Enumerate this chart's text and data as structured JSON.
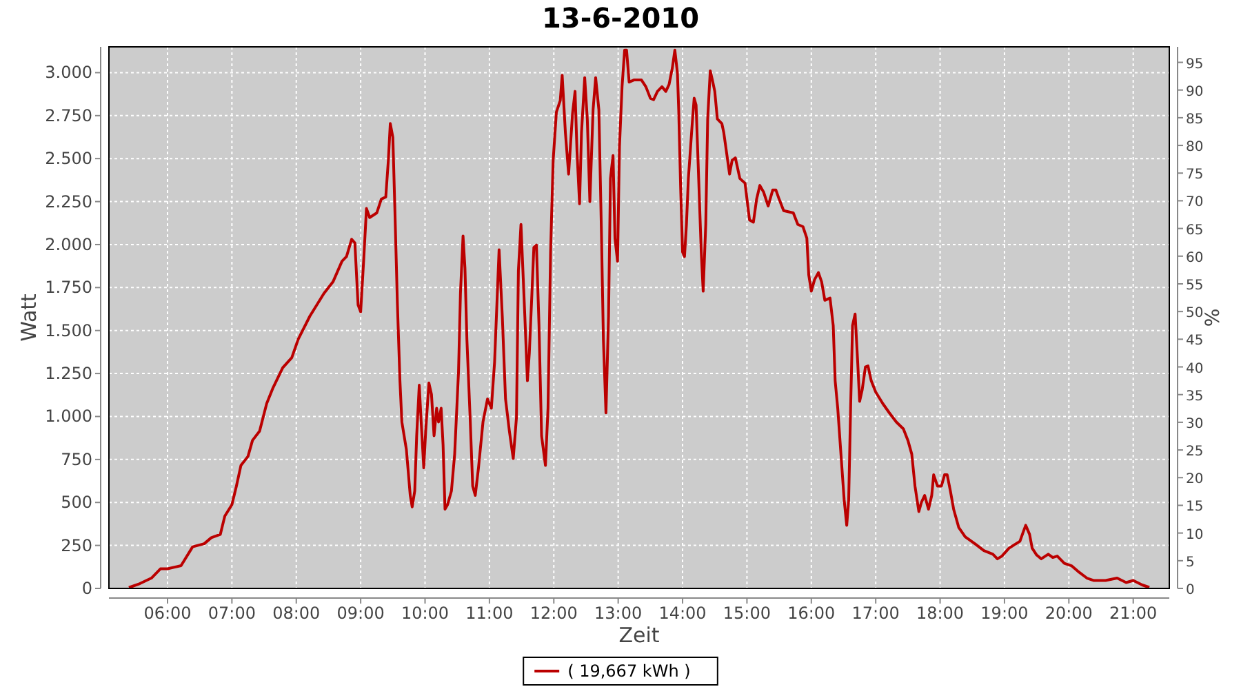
{
  "chart_data": {
    "type": "line",
    "title": "13-6-2010",
    "xlabel": "Zeit",
    "ylabel": "Watt",
    "y2label": "%",
    "xlim": [
      5.09,
      21.56
    ],
    "xticks": [
      {
        "value": 6,
        "label": "06:00"
      },
      {
        "value": 7,
        "label": "07:00"
      },
      {
        "value": 8,
        "label": "08:00"
      },
      {
        "value": 9,
        "label": "09:00"
      },
      {
        "value": 10,
        "label": "10:00"
      },
      {
        "value": 11,
        "label": "11:00"
      },
      {
        "value": 12,
        "label": "12:00"
      },
      {
        "value": 13,
        "label": "13:00"
      },
      {
        "value": 14,
        "label": "14:00"
      },
      {
        "value": 15,
        "label": "15:00"
      },
      {
        "value": 16,
        "label": "16:00"
      },
      {
        "value": 17,
        "label": "17:00"
      },
      {
        "value": 18,
        "label": "18:00"
      },
      {
        "value": 19,
        "label": "19:00"
      },
      {
        "value": 20,
        "label": "20:00"
      },
      {
        "value": 21,
        "label": "21:00"
      }
    ],
    "ylim": [
      0,
      3150
    ],
    "yticks": [
      0,
      250,
      500,
      750,
      {
        "value": 1000,
        "label": "1.000"
      },
      {
        "value": 1250,
        "label": "1.250"
      },
      {
        "value": 1500,
        "label": "1.500"
      },
      {
        "value": 1750,
        "label": "1.750"
      },
      {
        "value": 2000,
        "label": "2.000"
      },
      {
        "value": 2250,
        "label": "2.250"
      },
      {
        "value": 2500,
        "label": "2.500"
      },
      {
        "value": 2750,
        "label": "2.750"
      },
      {
        "value": 3000,
        "label": "3.000"
      }
    ],
    "y2lim": [
      0,
      97.8
    ],
    "y2ticks": [
      0,
      5,
      10,
      15,
      20,
      25,
      30,
      35,
      40,
      45,
      50,
      55,
      60,
      65,
      70,
      75,
      80,
      85,
      90,
      95
    ],
    "grid": true,
    "legend": "bottom",
    "marker": "none",
    "line_style": "solid",
    "series": [
      {
        "name": "( 19,667 kWh )",
        "color": "#bb0000",
        "x": [
          5.4,
          5.57,
          5.75,
          5.89,
          6.0,
          6.21,
          6.39,
          6.57,
          6.68,
          6.82,
          6.89,
          7.0,
          7.07,
          7.14,
          7.25,
          7.32,
          7.43,
          7.54,
          7.64,
          7.79,
          7.93,
          8.03,
          8.21,
          8.43,
          8.57,
          8.71,
          8.78,
          8.86,
          8.91,
          8.96,
          9.0,
          9.05,
          9.09,
          9.14,
          9.25,
          9.32,
          9.39,
          9.43,
          9.46,
          9.5,
          9.53,
          9.57,
          9.61,
          9.64,
          9.71,
          9.77,
          9.8,
          9.84,
          9.87,
          9.91,
          9.94,
          9.98,
          10.01,
          10.06,
          10.1,
          10.14,
          10.18,
          10.21,
          10.25,
          10.28,
          10.31,
          10.35,
          10.41,
          10.46,
          10.52,
          10.55,
          10.59,
          10.62,
          10.65,
          10.7,
          10.74,
          10.78,
          10.83,
          10.9,
          10.97,
          11.03,
          11.08,
          11.15,
          11.2,
          11.25,
          11.31,
          11.37,
          11.42,
          11.45,
          11.49,
          11.52,
          11.55,
          11.59,
          11.62,
          11.66,
          11.69,
          11.73,
          11.77,
          11.81,
          11.87,
          11.91,
          11.95,
          11.99,
          12.04,
          12.1,
          12.13,
          12.18,
          12.23,
          12.29,
          12.33,
          12.36,
          12.4,
          12.43,
          12.48,
          12.52,
          12.56,
          12.61,
          12.65,
          12.7,
          12.74,
          12.77,
          12.81,
          12.85,
          12.88,
          12.92,
          12.95,
          12.99,
          13.02,
          13.06,
          13.1,
          13.13,
          13.17,
          13.25,
          13.36,
          13.43,
          13.5,
          13.55,
          13.61,
          13.68,
          13.74,
          13.79,
          13.84,
          13.88,
          13.92,
          13.94,
          13.97,
          14.0,
          14.03,
          14.06,
          14.09,
          14.15,
          14.18,
          14.21,
          14.25,
          14.29,
          14.32,
          14.36,
          14.39,
          14.43,
          14.47,
          14.5,
          14.54,
          14.61,
          14.64,
          14.68,
          14.73,
          14.77,
          14.82,
          14.89,
          14.97,
          15.04,
          15.1,
          15.15,
          15.2,
          15.26,
          15.33,
          15.4,
          15.45,
          15.5,
          15.57,
          15.72,
          15.79,
          15.87,
          15.93,
          15.96,
          16.0,
          16.05,
          16.11,
          16.16,
          16.21,
          16.29,
          16.34,
          16.37,
          16.41,
          16.46,
          16.51,
          16.55,
          16.58,
          16.61,
          16.64,
          16.68,
          16.72,
          16.75,
          16.79,
          16.84,
          16.88,
          16.93,
          17.0,
          17.11,
          17.21,
          17.32,
          17.43,
          17.5,
          17.56,
          17.61,
          17.67,
          17.71,
          17.76,
          17.82,
          17.87,
          17.9,
          17.96,
          18.02,
          18.07,
          18.11,
          18.16,
          18.21,
          18.29,
          18.39,
          18.54,
          18.68,
          18.82,
          18.89,
          18.96,
          19.07,
          19.18,
          19.24,
          19.29,
          19.33,
          19.39,
          19.43,
          19.5,
          19.57,
          19.68,
          19.75,
          19.82,
          19.93,
          20.04,
          20.14,
          20.28,
          20.39,
          20.57,
          20.75,
          20.89,
          21.0,
          21.14,
          21.25
        ],
        "values": [
          5,
          28,
          60,
          114,
          114,
          132,
          242,
          260,
          295,
          314,
          421,
          487,
          595,
          715,
          768,
          861,
          915,
          1075,
          1168,
          1284,
          1342,
          1449,
          1583,
          1716,
          1783,
          1903,
          1930,
          2031,
          2010,
          1649,
          1609,
          1930,
          2210,
          2157,
          2184,
          2264,
          2277,
          2490,
          2704,
          2624,
          2224,
          1663,
          1208,
          968,
          808,
          541,
          474,
          567,
          888,
          1182,
          968,
          701,
          915,
          1195,
          1128,
          888,
          1048,
          968,
          1048,
          835,
          461,
          487,
          567,
          781,
          1262,
          1716,
          2050,
          1863,
          1449,
          995,
          595,
          541,
          701,
          968,
          1102,
          1048,
          1316,
          1970,
          1583,
          1102,
          915,
          755,
          995,
          1850,
          2117,
          1850,
          1583,
          1208,
          1369,
          1716,
          1983,
          1997,
          1529,
          888,
          715,
          1048,
          1957,
          2490,
          2771,
          2838,
          2985,
          2651,
          2410,
          2758,
          2891,
          2544,
          2237,
          2651,
          2971,
          2731,
          2250,
          2784,
          2971,
          2784,
          2063,
          1449,
          1021,
          1583,
          2384,
          2518,
          2037,
          1903,
          2571,
          2918,
          3131,
          3131,
          2945,
          2958,
          2958,
          2918,
          2851,
          2843,
          2891,
          2918,
          2891,
          2931,
          3025,
          3131,
          2998,
          2784,
          2330,
          1957,
          1930,
          2117,
          2384,
          2704,
          2851,
          2811,
          2384,
          1957,
          1729,
          2117,
          2731,
          3011,
          2945,
          2891,
          2731,
          2704,
          2651,
          2544,
          2410,
          2490,
          2504,
          2384,
          2357,
          2143,
          2130,
          2264,
          2344,
          2304,
          2224,
          2317,
          2317,
          2264,
          2197,
          2184,
          2117,
          2104,
          2037,
          1823,
          1729,
          1796,
          1837,
          1783,
          1676,
          1689,
          1529,
          1208,
          1048,
          781,
          514,
          367,
          514,
          1048,
          1529,
          1596,
          1316,
          1088,
          1155,
          1288,
          1294,
          1208,
          1142,
          1075,
          1022,
          968,
          928,
          861,
          781,
          595,
          447,
          501,
          541,
          461,
          541,
          661,
          595,
          595,
          661,
          661,
          567,
          461,
          354,
          300,
          260,
          220,
          199,
          172,
          188,
          234,
          260,
          274,
          327,
          367,
          314,
          234,
          194,
          172,
          199,
          180,
          188,
          146,
          132,
          100,
          60,
          46,
          46,
          60,
          34,
          46,
          20,
          6
        ]
      }
    ]
  }
}
